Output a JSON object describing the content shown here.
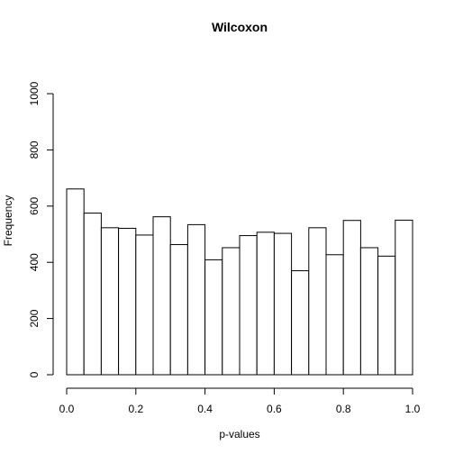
{
  "chart_data": {
    "type": "bar",
    "title": "Wilcoxon",
    "xlabel": "p-values",
    "ylabel": "Frequency",
    "xlim": [
      0,
      1
    ],
    "ylim": [
      0,
      1000
    ],
    "bin_width": 0.05,
    "bin_edges": [
      0.0,
      0.05,
      0.1,
      0.15,
      0.2,
      0.25,
      0.3,
      0.35,
      0.4,
      0.45,
      0.5,
      0.55,
      0.6,
      0.65,
      0.7,
      0.75,
      0.8,
      0.85,
      0.9,
      0.95,
      1.0
    ],
    "values": [
      661,
      575,
      523,
      521,
      497,
      562,
      463,
      534,
      409,
      452,
      495,
      507,
      503,
      370,
      523,
      427,
      549,
      452,
      422,
      550
    ],
    "x_ticks": [
      0.0,
      0.2,
      0.4,
      0.6,
      0.8,
      1.0
    ],
    "x_tick_labels": [
      "0.0",
      "0.2",
      "0.4",
      "0.6",
      "0.8",
      "1.0"
    ],
    "y_ticks": [
      0,
      200,
      400,
      600,
      800,
      1000
    ],
    "y_tick_labels": [
      "0",
      "200",
      "400",
      "600",
      "800",
      "1000"
    ],
    "grid": false,
    "legend": "none"
  }
}
